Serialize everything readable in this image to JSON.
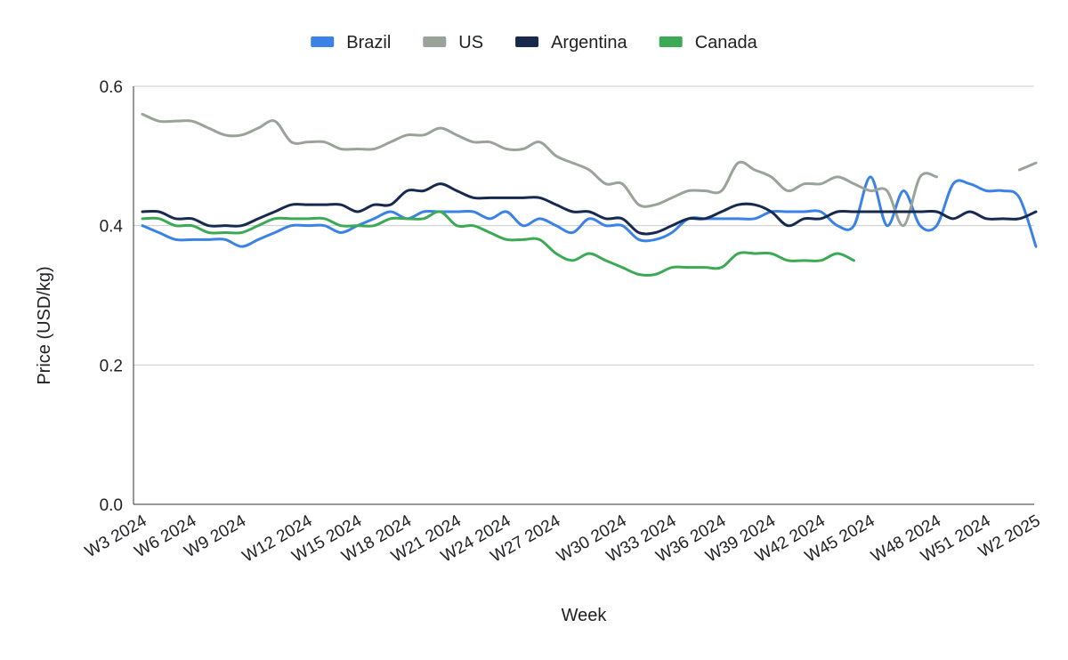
{
  "chart_data": {
    "type": "line",
    "title": "",
    "xlabel": "Week",
    "ylabel": "Price (USD/kg)",
    "ylim": [
      0,
      0.6
    ],
    "yticks": [
      "0.0",
      "0.2",
      "0.4",
      "0.6"
    ],
    "grid": "horizontal",
    "legend_position": "top",
    "x_tick_labels": [
      "W3 2024",
      "W6 2024",
      "W9 2024",
      "W12 2024",
      "W15 2024",
      "W18 2024",
      "W21 2024",
      "W24 2024",
      "W27 2024",
      "W30 2024",
      "W33 2024",
      "W36 2024",
      "W39 2024",
      "W42 2024",
      "W45 2024",
      "W48 2024",
      "W51 2024",
      "W2 2025"
    ],
    "series": [
      {
        "name": "Brazil",
        "color": "#3b82e6",
        "values": [
          0.4,
          0.39,
          0.38,
          0.38,
          0.38,
          0.38,
          0.37,
          0.38,
          0.39,
          0.4,
          0.4,
          0.4,
          0.39,
          0.4,
          0.41,
          0.42,
          0.41,
          0.42,
          0.42,
          0.42,
          0.42,
          0.41,
          0.42,
          0.4,
          0.41,
          0.4,
          0.39,
          0.41,
          0.4,
          0.4,
          0.38,
          0.38,
          0.39,
          0.41,
          0.41,
          0.41,
          0.41,
          0.41,
          0.42,
          0.42,
          0.42,
          0.42,
          0.4,
          0.4,
          0.47,
          0.4,
          0.45,
          0.4,
          0.4,
          0.46,
          0.46,
          0.45,
          0.45,
          0.44,
          0.37
        ]
      },
      {
        "name": "US",
        "color": "#9aa39a",
        "values": [
          0.56,
          0.55,
          0.55,
          0.55,
          0.54,
          0.53,
          0.53,
          0.54,
          0.55,
          0.52,
          0.52,
          0.52,
          0.51,
          0.51,
          0.51,
          0.52,
          0.53,
          0.53,
          0.54,
          0.53,
          0.52,
          0.52,
          0.51,
          0.51,
          0.52,
          0.5,
          0.49,
          0.48,
          0.46,
          0.46,
          0.43,
          0.43,
          0.44,
          0.45,
          0.45,
          0.45,
          0.49,
          0.48,
          0.47,
          0.45,
          0.46,
          0.46,
          0.47,
          0.46,
          0.45,
          0.45,
          0.4,
          0.47,
          0.47,
          null,
          null,
          null,
          null,
          0.48,
          0.49
        ]
      },
      {
        "name": "Argentina",
        "color": "#172a4e",
        "values": [
          0.42,
          0.42,
          0.41,
          0.41,
          0.4,
          0.4,
          0.4,
          0.41,
          0.42,
          0.43,
          0.43,
          0.43,
          0.43,
          0.42,
          0.43,
          0.43,
          0.45,
          0.45,
          0.46,
          0.45,
          0.44,
          0.44,
          0.44,
          0.44,
          0.44,
          0.43,
          0.42,
          0.42,
          0.41,
          0.41,
          0.39,
          0.39,
          0.4,
          0.41,
          0.41,
          0.42,
          0.43,
          0.43,
          0.42,
          0.4,
          0.41,
          0.41,
          0.42,
          0.42,
          0.42,
          0.42,
          0.42,
          0.42,
          0.42,
          0.41,
          0.42,
          0.41,
          0.41,
          0.41,
          0.42
        ]
      },
      {
        "name": "Canada",
        "color": "#3caa55",
        "values": [
          0.41,
          0.41,
          0.4,
          0.4,
          0.39,
          0.39,
          0.39,
          0.4,
          0.41,
          0.41,
          0.41,
          0.41,
          0.4,
          0.4,
          0.4,
          0.41,
          0.41,
          0.41,
          0.42,
          0.4,
          0.4,
          0.39,
          0.38,
          0.38,
          0.38,
          0.36,
          0.35,
          0.36,
          0.35,
          0.34,
          0.33,
          0.33,
          0.34,
          0.34,
          0.34,
          0.34,
          0.36,
          0.36,
          0.36,
          0.35,
          0.35,
          0.35,
          0.36,
          0.35,
          null,
          null,
          null,
          null,
          null,
          null,
          null,
          null,
          null,
          null,
          null
        ]
      }
    ]
  }
}
